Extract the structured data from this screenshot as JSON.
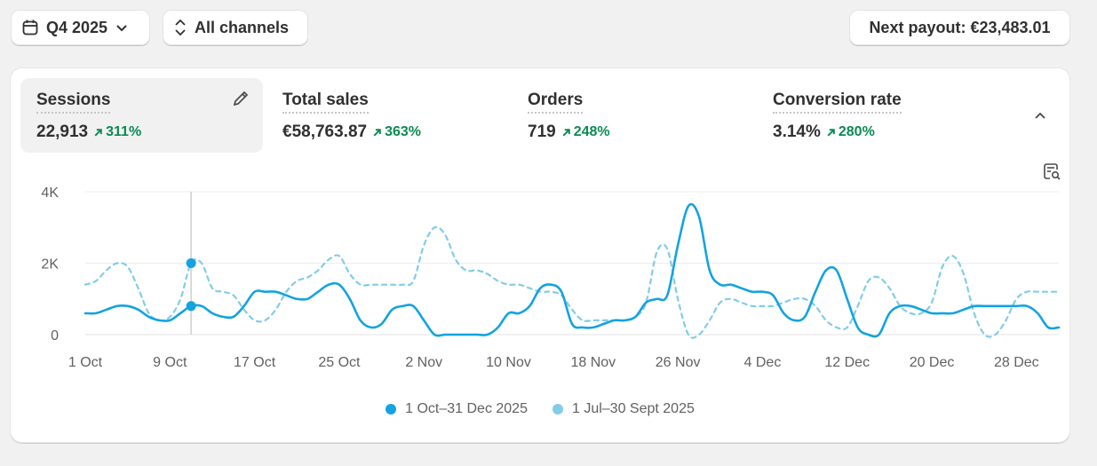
{
  "toolbar": {
    "period_label": "Q4 2025",
    "channels_label": "All channels",
    "payout_label": "Next payout: €23,483.01"
  },
  "metrics": [
    {
      "title": "Sessions",
      "value": "22,913",
      "change": "311%",
      "active": true
    },
    {
      "title": "Total sales",
      "value": "€58,763.87",
      "change": "363%"
    },
    {
      "title": "Orders",
      "value": "719",
      "change": "248%"
    },
    {
      "title": "Conversion rate",
      "value": "3.14%",
      "change": "280%"
    }
  ],
  "colors": {
    "current": "#13a3e0",
    "previous": "#82cce9",
    "positive": "#0c8a53"
  },
  "icons": [
    "calendar-icon",
    "chevron-down-icon",
    "sort-icon",
    "edit-icon",
    "chevron-up-icon",
    "chart-search-icon",
    "arrow-up-right-icon"
  ],
  "chart_data": {
    "type": "line",
    "ylim": [
      0,
      4000
    ],
    "y_ticks": [
      0,
      2000,
      4000
    ],
    "y_tick_labels": [
      "0",
      "2K",
      "4K"
    ],
    "x_tick_labels": [
      "1 Oct",
      "9 Oct",
      "17 Oct",
      "25 Oct",
      "2 Nov",
      "10 Nov",
      "18 Nov",
      "26 Nov",
      "4 Dec",
      "12 Dec",
      "20 Dec",
      "28 Dec"
    ],
    "x_tick_index": [
      0,
      8,
      16,
      24,
      32,
      40,
      48,
      56,
      64,
      72,
      80,
      88
    ],
    "hover_index": 10,
    "grid": true,
    "legend_position": "bottom",
    "series": [
      {
        "name": "1 Oct–31 Dec 2025",
        "style": "solid",
        "values": [
          600,
          600,
          700,
          800,
          800,
          700,
          500,
          400,
          400,
          600,
          800,
          800,
          600,
          500,
          500,
          800,
          1200,
          1200,
          1200,
          1100,
          1000,
          1000,
          1200,
          1400,
          1400,
          1000,
          400,
          200,
          300,
          700,
          800,
          800,
          400,
          0,
          0,
          0,
          0,
          0,
          0,
          200,
          600,
          600,
          800,
          1300,
          1400,
          1200,
          300,
          200,
          200,
          300,
          400,
          400,
          500,
          900,
          1000,
          1100,
          2500,
          3600,
          3300,
          1800,
          1400,
          1400,
          1300,
          1200,
          1200,
          1100,
          600,
          400,
          500,
          1200,
          1800,
          1800,
          1000,
          200,
          0,
          0,
          600,
          800,
          800,
          700,
          600,
          600,
          600,
          700,
          800,
          800,
          800,
          800,
          800,
          800,
          600,
          200,
          200
        ]
      },
      {
        "name": "1 Jul–30 Sept 2025",
        "style": "dashed",
        "values": [
          1400,
          1500,
          1800,
          2000,
          1900,
          1300,
          600,
          400,
          500,
          1000,
          2000,
          2000,
          1300,
          1200,
          1100,
          700,
          400,
          400,
          700,
          1200,
          1500,
          1600,
          1800,
          2100,
          2200,
          1700,
          1400,
          1400,
          1400,
          1400,
          1400,
          1500,
          2500,
          3000,
          2800,
          2100,
          1800,
          1800,
          1700,
          1500,
          1400,
          1400,
          1300,
          1200,
          1200,
          1100,
          700,
          400,
          400,
          400,
          400,
          400,
          500,
          900,
          2300,
          2400,
          1000,
          0,
          0,
          400,
          900,
          1000,
          900,
          800,
          800,
          800,
          900,
          1000,
          1000,
          800,
          400,
          200,
          200,
          800,
          1500,
          1600,
          1300,
          800,
          600,
          600,
          900,
          1900,
          2200,
          1700,
          600,
          0,
          0,
          400,
          1000,
          1200,
          1200,
          1200,
          1200
        ]
      }
    ]
  },
  "legend": [
    {
      "label": "1 Oct–31 Dec 2025"
    },
    {
      "label": "1 Jul–30 Sept 2025"
    }
  ]
}
